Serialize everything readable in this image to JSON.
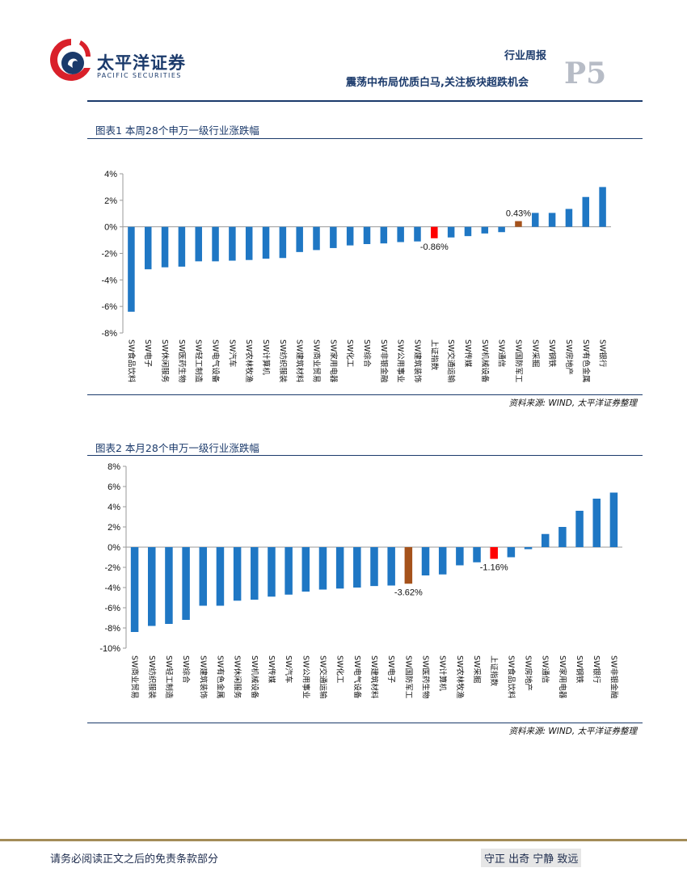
{
  "header": {
    "logo_cn": "太平洋证券",
    "logo_en": "PACIFIC SECURITIES",
    "report_type": "行业周报",
    "subtitle": "震荡中布局优质白马,关注板块超跌机会",
    "page": "P5"
  },
  "figures": [
    {
      "title": "图表1 本周28个申万一级行业涨跌幅",
      "source": "资料来源: WIND, 太平洋证券整理"
    },
    {
      "title": "图表2 本月28个申万一级行业涨跌幅",
      "source": "资料来源: WIND, 太平洋证券整理"
    }
  ],
  "colors": {
    "bar": "#1f77c4",
    "index": "#ff0000",
    "highlight": "#a5521b",
    "navy": "#1b3a6b",
    "gold": "#a38c58"
  },
  "chart_data": [
    {
      "type": "bar",
      "title": "图表1 本周28个申万一级行业涨跌幅",
      "ylim": [
        -8,
        4
      ],
      "yticks": [
        4,
        2,
        0,
        -2,
        -4,
        -6,
        -8
      ],
      "ytick_labels": [
        "4%",
        "2%",
        "0%",
        "-2%",
        "-4%",
        "-6%",
        "-8%"
      ],
      "categories": [
        "SW食品饮料",
        "SW电子",
        "SW休闲服务",
        "SW医药生物",
        "SW轻工制造",
        "SW电气设备",
        "SW汽车",
        "SW农林牧渔",
        "SW计算机",
        "SW纺织服装",
        "SW建筑材料",
        "SW商业贸易",
        "SW家用电器",
        "SW化工",
        "SW综合",
        "SW非银金融",
        "SW公用事业",
        "SW建筑装饰",
        "上证指数",
        "SW交通运输",
        "SW传媒",
        "SW机械设备",
        "SW通信",
        "SW国防军工",
        "SW采掘",
        "SW钢铁",
        "SW房地产",
        "SW有色金属",
        "SW银行"
      ],
      "values": [
        -6.4,
        -3.2,
        -3.05,
        -3.0,
        -2.6,
        -2.6,
        -2.55,
        -2.5,
        -2.4,
        -2.35,
        -1.9,
        -1.75,
        -1.6,
        -1.4,
        -1.3,
        -1.25,
        -1.15,
        -1.1,
        -0.86,
        -0.8,
        -0.7,
        -0.5,
        -0.4,
        0.43,
        1.05,
        1.05,
        1.35,
        2.25,
        3.0
      ],
      "highlights": {
        "上证指数": "index",
        "SW国防军工": "highlight"
      },
      "data_labels": [
        {
          "index": 18,
          "text": "-0.86%"
        },
        {
          "index": 23,
          "text": "0.43%"
        }
      ],
      "grid": false
    },
    {
      "type": "bar",
      "title": "图表2 本月28个申万一级行业涨跌幅",
      "ylim": [
        -10,
        8
      ],
      "yticks": [
        8,
        6,
        4,
        2,
        0,
        -2,
        -4,
        -6,
        -8,
        -10
      ],
      "ytick_labels": [
        "8%",
        "6%",
        "4%",
        "2%",
        "0%",
        "-2%",
        "-4%",
        "-6%",
        "-8%",
        "-10%"
      ],
      "categories": [
        "SW商业贸易",
        "SW纺织服装",
        "SW轻工制造",
        "SW综合",
        "SW建筑装饰",
        "SW有色金属",
        "SW休闲服务",
        "SW机械设备",
        "SW传媒",
        "SW汽车",
        "SW公用事业",
        "SW交通运输",
        "SW化工",
        "SW电气设备",
        "SW建筑材料",
        "SW电子",
        "SW国防军工",
        "SW医药生物",
        "SW计算机",
        "SW农林牧渔",
        "SW采掘",
        "上证指数",
        "SW食品饮料",
        "SW房地产",
        "SW通信",
        "SW家用电器",
        "SW钢铁",
        "SW银行",
        "SW非银金融"
      ],
      "values": [
        -8.4,
        -7.8,
        -7.6,
        -7.2,
        -5.8,
        -5.8,
        -5.3,
        -5.2,
        -4.9,
        -4.7,
        -4.4,
        -4.2,
        -4.1,
        -4.0,
        -3.85,
        -3.8,
        -3.62,
        -2.8,
        -2.7,
        -1.8,
        -1.5,
        -1.16,
        -1.0,
        -0.2,
        1.3,
        2.0,
        3.6,
        4.8,
        5.4
      ],
      "highlights": {
        "上证指数": "index",
        "SW国防军工": "highlight"
      },
      "data_labels": [
        {
          "index": 16,
          "text": "-3.62%"
        },
        {
          "index": 21,
          "text": "-1.16%"
        }
      ],
      "grid": false
    }
  ],
  "footer": {
    "disclaimer": "请务必阅读正文之后的免责条款部分",
    "motto": "守正 出奇 宁静 致远"
  }
}
